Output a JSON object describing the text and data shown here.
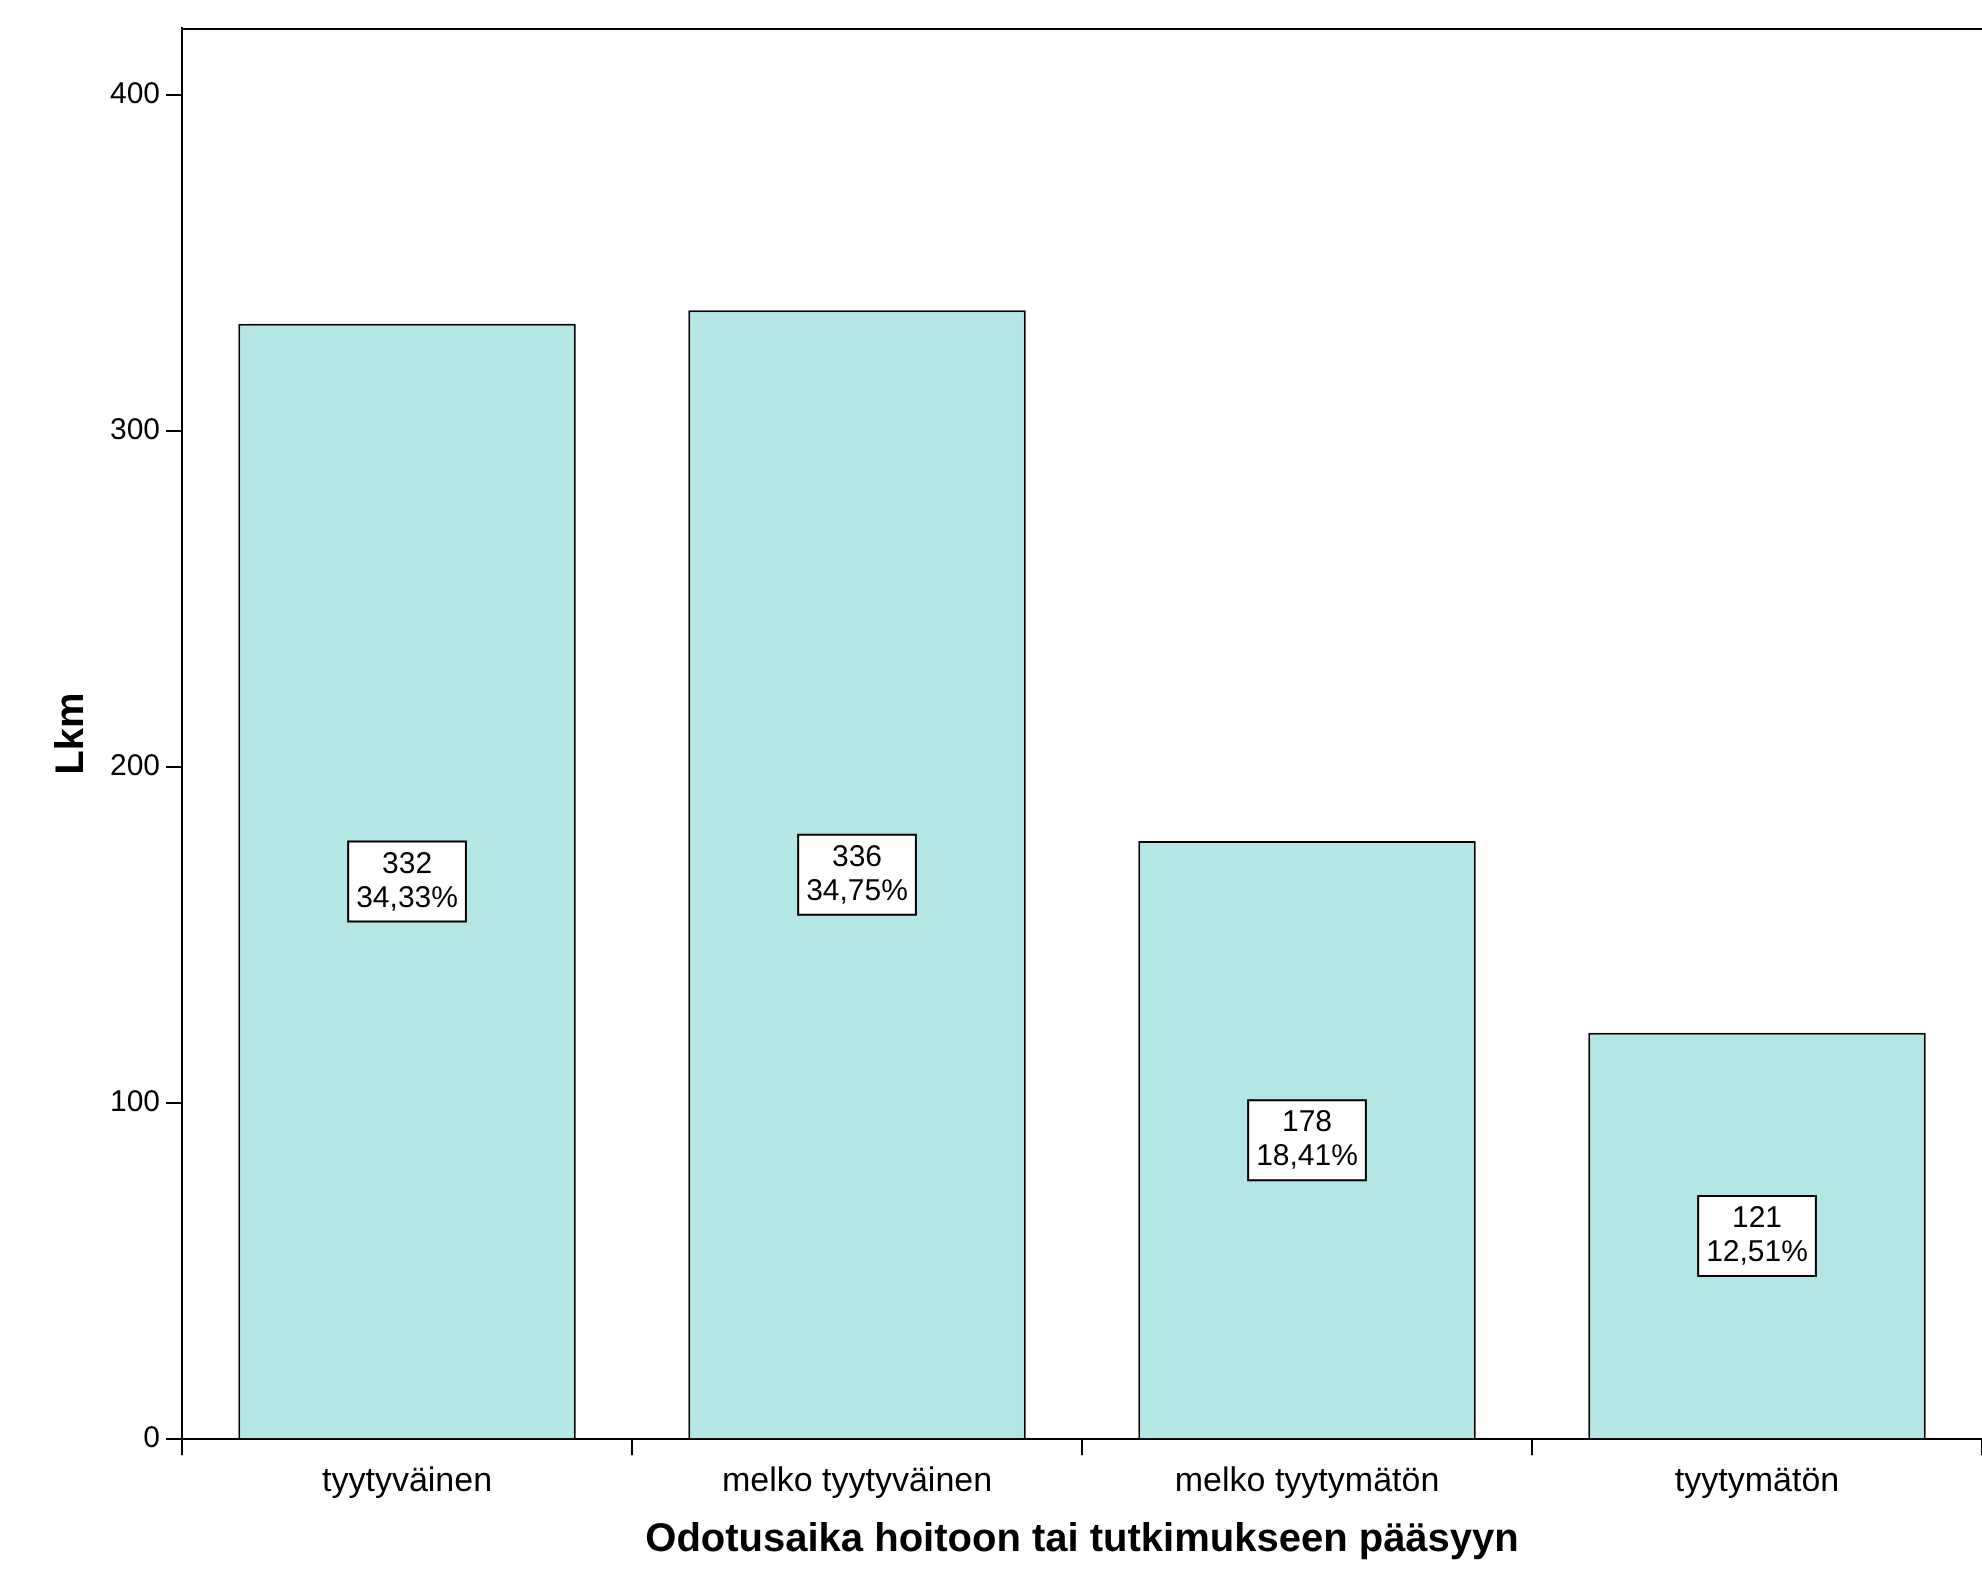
{
  "chart_data": {
    "type": "bar",
    "xlabel": "Odotusaika hoitoon tai tutkimukseen pääsyyn",
    "ylabel": "Lkm",
    "categories": [
      "tyytyväinen",
      "melko tyytyväinen",
      "melko tyytymätön",
      "tyytymätön"
    ],
    "values": [
      332,
      336,
      178,
      121
    ],
    "value_labels": [
      "332\n34,33%",
      "336\n34,75%",
      "178\n18,41%",
      "121\n12,51%"
    ],
    "color": "#b5e6e6",
    "ylim": [
      0,
      420
    ],
    "yticks": [
      0,
      100,
      200,
      300,
      400
    ],
    "grid": false,
    "legend": false
  }
}
